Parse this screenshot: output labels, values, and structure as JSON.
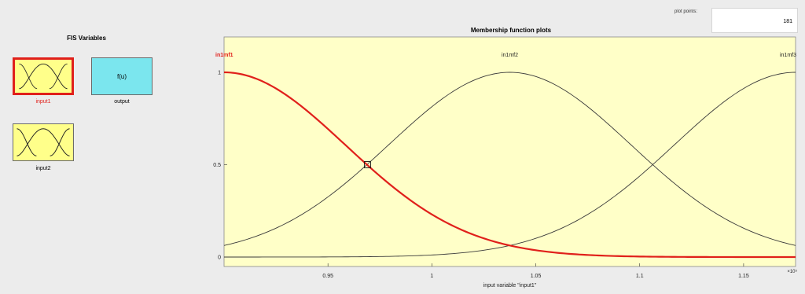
{
  "fis_panel": {
    "title": "FIS Variables",
    "variables": [
      {
        "label": "input1",
        "kind": "input",
        "selected": true
      },
      {
        "label": "output",
        "kind": "output",
        "selected": false,
        "symbol": "f(u)"
      },
      {
        "label": "input2",
        "kind": "input",
        "selected": false
      }
    ]
  },
  "plot_points": {
    "label": "plot points:",
    "value": "181"
  },
  "colors": {
    "plot_bg": "#ffffc8",
    "panel_bg": "#ececec",
    "selected_curve": "#e0201b",
    "curve": "#3a3a3a",
    "input_box": "#ffff8a",
    "output_box": "#7be6ee"
  },
  "chart_data": {
    "type": "line",
    "title": "Membership function plots",
    "xlabel": "input variable \"input1\"",
    "ylabel": "",
    "exponent_label": "×10⁵",
    "xlim": [
      0.9,
      1.175
    ],
    "ylim": [
      0,
      1
    ],
    "x_ticks": [
      0.95,
      1.0,
      1.05,
      1.1,
      1.15
    ],
    "x_tick_labels": [
      "0.95",
      "1",
      "1.05",
      "1.1",
      "1.15"
    ],
    "y_ticks": [
      0,
      0.5,
      1
    ],
    "y_tick_labels": [
      "0",
      "0.5",
      "1"
    ],
    "selected_series": "in1mf1",
    "marker": {
      "x": 0.969,
      "y": 0.5
    },
    "series": [
      {
        "name": "in1mf1",
        "shape": "gaussian",
        "center": 0.9,
        "sigma": 0.0584,
        "label_x": 0.9
      },
      {
        "name": "in1mf2",
        "shape": "gaussian",
        "center": 1.0375,
        "sigma": 0.0584,
        "label_x": 1.0375
      },
      {
        "name": "in1mf3",
        "shape": "gaussian",
        "center": 1.175,
        "sigma": 0.0584,
        "label_x": 1.175
      }
    ]
  }
}
